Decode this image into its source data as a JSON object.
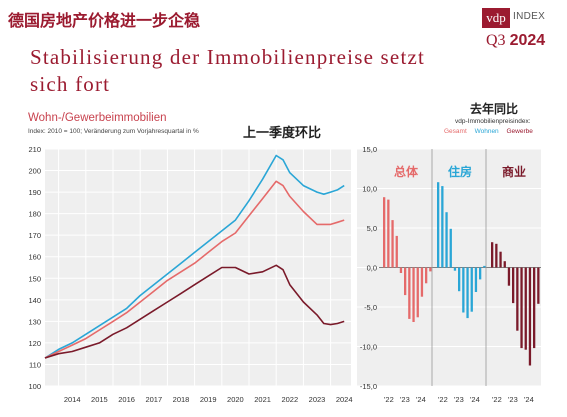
{
  "header": {
    "cn_title": "德国房地产价格进一步企稳",
    "logo_text": "vdp",
    "logo_suffix": "INDEX",
    "quarter_label": "Q3",
    "quarter_year": "2024",
    "headline": "Stabilisierung der Immobilienpreise setzt sich fort"
  },
  "colors": {
    "brand": "#9b1b30",
    "gesamt": "#e56a6a",
    "wohnen": "#2aa6d6",
    "gewerbe": "#7a1a2a"
  },
  "chart_data": [
    {
      "type": "line",
      "title": "Wohn-/Gewerbeimmobilien",
      "subtitle": "Index: 2010 = 100; Veränderung zum Vorjahresquartal in %",
      "annotation": "上一季度环比",
      "ylim": [
        100,
        210
      ],
      "yticks": [
        100,
        110,
        120,
        130,
        140,
        150,
        160,
        170,
        180,
        190,
        200,
        210
      ],
      "xlim": [
        2013.5,
        2024.75
      ],
      "xticks": [
        "2014",
        "2015",
        "2016",
        "2017",
        "2018",
        "2019",
        "2020",
        "2021",
        "2022",
        "2023",
        "2024"
      ],
      "grid": true,
      "series": [
        {
          "key": "wohnen",
          "values": [
            [
              2013.5,
              113
            ],
            [
              2014,
              117
            ],
            [
              2014.5,
              120
            ],
            [
              2015,
              124
            ],
            [
              2015.5,
              128
            ],
            [
              2016,
              132
            ],
            [
              2016.5,
              136
            ],
            [
              2017,
              142
            ],
            [
              2017.5,
              147
            ],
            [
              2018,
              152
            ],
            [
              2018.5,
              157
            ],
            [
              2019,
              162
            ],
            [
              2019.5,
              167
            ],
            [
              2020,
              172
            ],
            [
              2020.5,
              177
            ],
            [
              2021,
              186
            ],
            [
              2021.5,
              196
            ],
            [
              2022,
              207
            ],
            [
              2022.25,
              205
            ],
            [
              2022.5,
              199
            ],
            [
              2023,
              193
            ],
            [
              2023.5,
              190
            ],
            [
              2023.75,
              189
            ],
            [
              2024,
              190
            ],
            [
              2024.25,
              191
            ],
            [
              2024.5,
              193
            ]
          ]
        },
        {
          "key": "gesamt",
          "values": [
            [
              2013.5,
              113
            ],
            [
              2014,
              116
            ],
            [
              2014.5,
              119
            ],
            [
              2015,
              122
            ],
            [
              2015.5,
              126
            ],
            [
              2016,
              130
            ],
            [
              2016.5,
              134
            ],
            [
              2017,
              139
            ],
            [
              2017.5,
              144
            ],
            [
              2018,
              149
            ],
            [
              2018.5,
              153
            ],
            [
              2019,
              157
            ],
            [
              2019.5,
              162
            ],
            [
              2020,
              167
            ],
            [
              2020.5,
              171
            ],
            [
              2021,
              179
            ],
            [
              2021.5,
              187
            ],
            [
              2022,
              195
            ],
            [
              2022.25,
              193
            ],
            [
              2022.5,
              188
            ],
            [
              2023,
              181
            ],
            [
              2023.5,
              175
            ],
            [
              2023.75,
              175
            ],
            [
              2024,
              175
            ],
            [
              2024.25,
              176
            ],
            [
              2024.5,
              177
            ]
          ]
        },
        {
          "key": "gewerbe",
          "values": [
            [
              2013.5,
              113
            ],
            [
              2014,
              115
            ],
            [
              2014.5,
              116
            ],
            [
              2015,
              118
            ],
            [
              2015.5,
              120
            ],
            [
              2016,
              124
            ],
            [
              2016.5,
              127
            ],
            [
              2017,
              131
            ],
            [
              2017.5,
              135
            ],
            [
              2018,
              139
            ],
            [
              2018.5,
              143
            ],
            [
              2019,
              147
            ],
            [
              2019.5,
              151
            ],
            [
              2020,
              155
            ],
            [
              2020.5,
              155
            ],
            [
              2021,
              152
            ],
            [
              2021.5,
              153
            ],
            [
              2022,
              156
            ],
            [
              2022.25,
              154
            ],
            [
              2022.5,
              147
            ],
            [
              2023,
              139
            ],
            [
              2023.5,
              133
            ],
            [
              2023.75,
              129
            ],
            [
              2024,
              128.5
            ],
            [
              2024.25,
              129
            ],
            [
              2024.5,
              130
            ]
          ]
        }
      ]
    },
    {
      "type": "bar",
      "title": "去年同比",
      "legend_title": "vdp-Immobilienpreisindex:",
      "legend": [
        "Gesamt",
        "Wohnen",
        "Gewerbe"
      ],
      "ylim": [
        -15,
        15
      ],
      "yticks": [
        "15,0",
        "10,0",
        "5,0",
        "0,0",
        "-5,0",
        "-10,0",
        "-15,0"
      ],
      "xticks": [
        "'22",
        "'23",
        "'24"
      ],
      "panels": [
        {
          "label": "总体",
          "key": "gesamt",
          "values": [
            8.9,
            8.6,
            6.0,
            4.0,
            -0.7,
            -3.5,
            -6.5,
            -6.9,
            -6.3,
            -3.7,
            -2.0,
            -0.5
          ]
        },
        {
          "label": "住房",
          "key": "wohnen",
          "values": [
            10.8,
            10.3,
            7.0,
            4.9,
            -0.4,
            -3.0,
            -5.7,
            -6.4,
            -5.6,
            -3.1,
            -1.5,
            0.2
          ]
        },
        {
          "label": "商业",
          "key": "gewerbe",
          "values": [
            3.2,
            3.0,
            2.0,
            0.8,
            -2.3,
            -4.5,
            -8.0,
            -10.2,
            -10.4,
            -12.4,
            -10.2,
            -4.6
          ]
        }
      ]
    }
  ]
}
